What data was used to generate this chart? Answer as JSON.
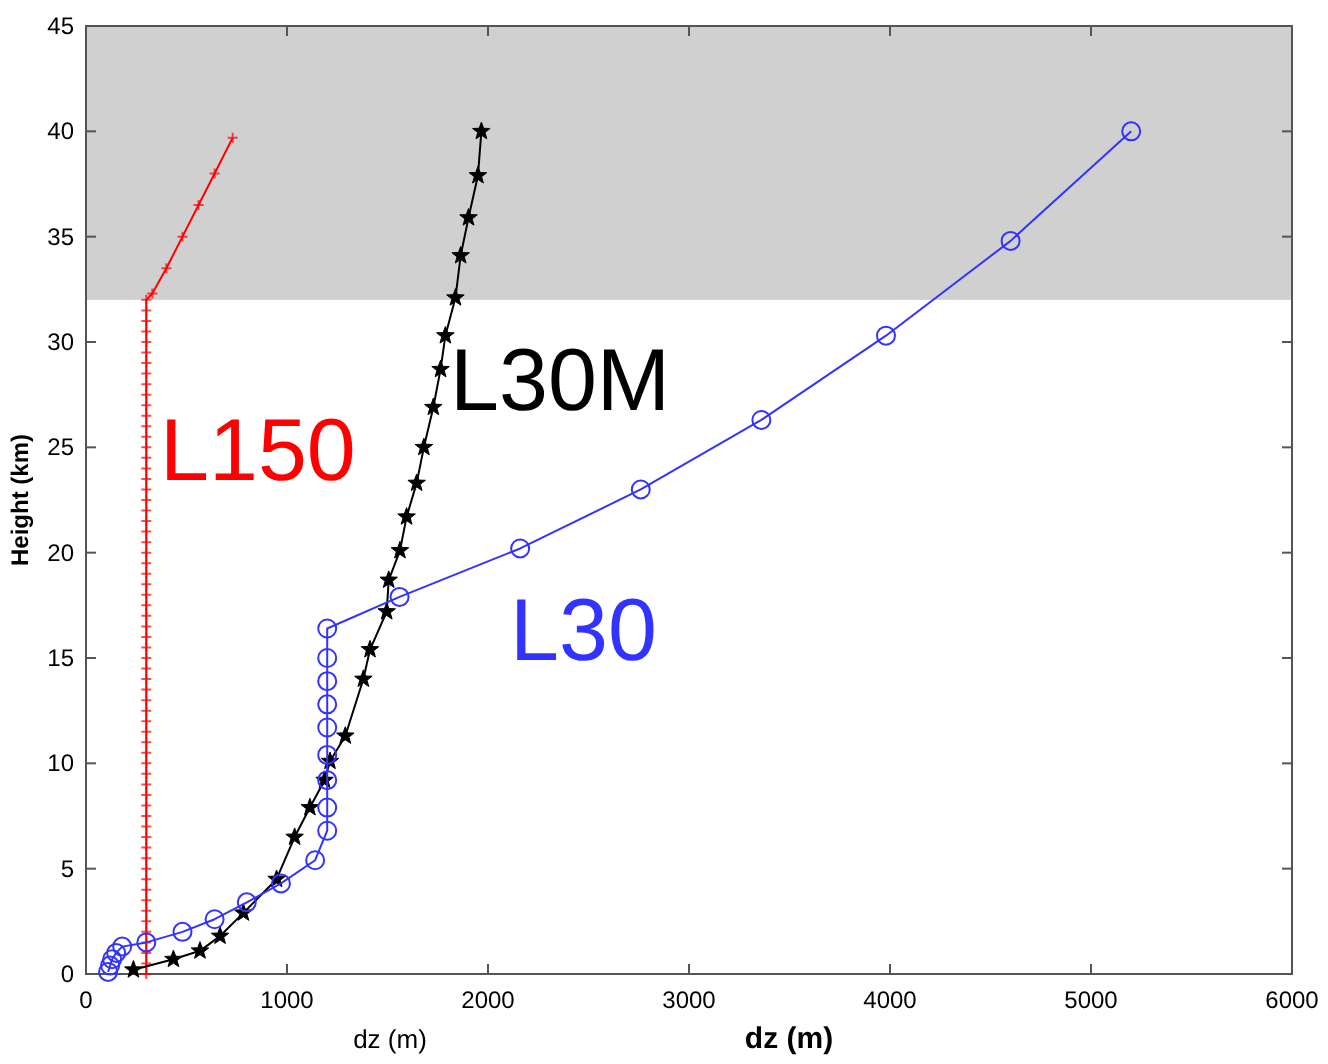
{
  "chart_data": {
    "type": "line",
    "xlabel": "dz (m)",
    "ylabel": "Height (km)",
    "annotations": [
      "dz (m)"
    ],
    "xlim": [
      0,
      6000
    ],
    "ylim": [
      0,
      45
    ],
    "xticks": [
      0,
      1000,
      2000,
      3000,
      4000,
      5000,
      6000
    ],
    "yticks": [
      0,
      5,
      10,
      15,
      20,
      25,
      30,
      35,
      40,
      45
    ],
    "grid": false,
    "bands": [
      {
        "axis": "y",
        "from": 32,
        "to": 45,
        "color": "#d0d0d0"
      }
    ],
    "series": [
      {
        "name": "L150",
        "color": "#ff0000",
        "marker": "cross",
        "x": [
          300,
          300,
          300,
          300,
          300,
          300,
          300,
          300,
          300,
          300,
          300,
          300,
          300,
          300,
          300,
          300,
          300,
          300,
          300,
          300,
          300,
          300,
          300,
          300,
          300,
          300,
          300,
          300,
          300,
          300,
          300,
          300,
          300,
          300,
          300,
          300,
          300,
          300,
          300,
          300,
          300,
          300,
          300,
          300,
          300,
          300,
          300,
          300,
          300,
          300,
          300,
          300,
          300,
          300,
          300,
          300,
          300,
          300,
          300,
          300,
          300,
          300,
          300,
          300,
          300,
          330,
          400,
          480,
          560,
          640,
          730
        ],
        "values": [
          0,
          0.5,
          1,
          1.5,
          2,
          2.5,
          3,
          3.5,
          4,
          4.5,
          5,
          5.5,
          6,
          6.5,
          7,
          7.5,
          8,
          8.5,
          9,
          9.5,
          10,
          10.5,
          11,
          11.5,
          12,
          12.5,
          13,
          13.5,
          14,
          14.5,
          15,
          15.5,
          16,
          16.5,
          17,
          17.5,
          18,
          18.5,
          19,
          19.5,
          20,
          20.5,
          21,
          21.5,
          22,
          22.5,
          23,
          23.5,
          24,
          24.5,
          25,
          25.5,
          26,
          26.5,
          27,
          27.5,
          28,
          28.5,
          29,
          29.5,
          30,
          30.5,
          31,
          31.5,
          32,
          32.3,
          33.5,
          35,
          36.5,
          38,
          39.7
        ]
      },
      {
        "name": "L30M",
        "color": "#000000",
        "marker": "star",
        "x": [
          236,
          435,
          567,
          667,
          783,
          948,
          1038,
          1114,
          1187,
          1214,
          1290,
          1380,
          1413,
          1496,
          1506,
          1562,
          1595,
          1645,
          1681,
          1728,
          1764,
          1788,
          1838,
          1864,
          1903,
          1950,
          1967
        ],
        "values": [
          0.2,
          0.7,
          1.1,
          1.8,
          2.9,
          4.5,
          6.5,
          7.9,
          9.2,
          10.1,
          11.3,
          14,
          15.4,
          17.2,
          18.7,
          20.1,
          21.7,
          23.3,
          25,
          26.9,
          28.7,
          30.3,
          32.1,
          34.1,
          35.9,
          37.9,
          40
        ]
      },
      {
        "name": "L30",
        "color": "#3333ff",
        "marker": "circle",
        "x": [
          110,
          120,
          130,
          150,
          180,
          300,
          480,
          640,
          800,
          970,
          1140,
          1200,
          1200,
          1200,
          1200,
          1200,
          1200,
          1200,
          1200,
          1200,
          1560,
          2160,
          2760,
          3360,
          3980,
          4600,
          5200
        ],
        "values": [
          0.1,
          0.4,
          0.7,
          1,
          1.3,
          1.5,
          2,
          2.6,
          3.4,
          4.3,
          5.4,
          6.8,
          7.9,
          9.2,
          10.4,
          11.7,
          12.8,
          13.9,
          15,
          16.4,
          17.9,
          20.2,
          23,
          26.3,
          30.3,
          34.8,
          40
        ]
      }
    ]
  }
}
